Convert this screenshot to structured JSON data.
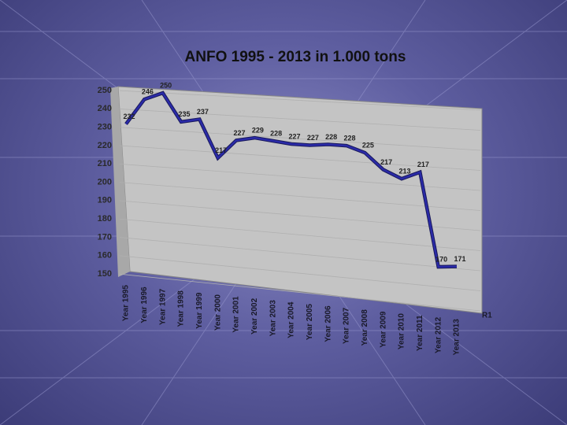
{
  "chart_data": {
    "type": "line",
    "title": "ANFO 1995 - 2013 in 1.000 tons",
    "categories": [
      "Year 1995",
      "Year 1996",
      "Year 1997",
      "Year 1998",
      "Year 1999",
      "Year 2000",
      "Year 2001",
      "Year 2002",
      "Year 2003",
      "Year 2004",
      "Year 2005",
      "Year 2006",
      "Year 2007",
      "Year 2008",
      "Year 2009",
      "Year 2010",
      "Year 2011",
      "Year 2012",
      "Year 2013"
    ],
    "series": [
      {
        "name": "R1",
        "color": "#2a2aa8",
        "values": [
          232,
          246,
          250,
          235,
          237,
          217,
          227,
          229,
          228,
          227,
          227,
          228,
          228,
          225,
          217,
          213,
          217,
          170,
          171
        ]
      }
    ],
    "ylim": [
      150,
      250
    ],
    "yticks": [
      150,
      160,
      170,
      180,
      190,
      200,
      210,
      220,
      230,
      240,
      250
    ],
    "grid": true
  }
}
